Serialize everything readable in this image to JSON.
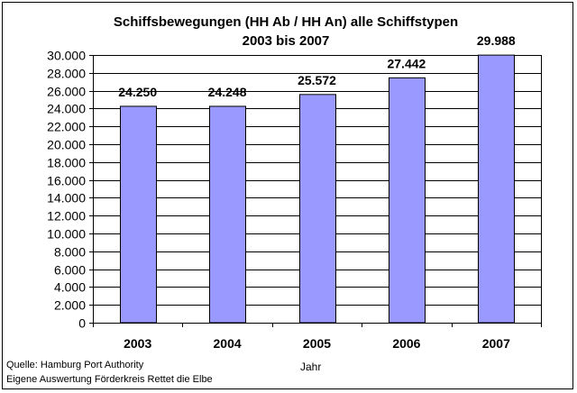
{
  "chart_data": {
    "type": "bar",
    "title_lines": [
      "Schiffsbewegungen (HH Ab / HH An) alle Schiffstypen",
      "2003 bis 2007"
    ],
    "categories": [
      "2003",
      "2004",
      "2005",
      "2006",
      "2007"
    ],
    "values": [
      24250,
      24248,
      25572,
      27442,
      29988
    ],
    "data_labels": [
      "24.250",
      "24.248",
      "25.572",
      "27.442",
      "29.988"
    ],
    "xlabel": "Jahr",
    "ylabel": "",
    "ylim": [
      0,
      30000
    ],
    "yticks": [
      0,
      2000,
      4000,
      6000,
      8000,
      10000,
      12000,
      14000,
      16000,
      18000,
      20000,
      22000,
      24000,
      26000,
      28000,
      30000
    ],
    "ytick_labels": [
      "0",
      "2.000",
      "4.000",
      "6.000",
      "8.000",
      "10.000",
      "12.000",
      "14.000",
      "16.000",
      "18.000",
      "20.000",
      "22.000",
      "24.000",
      "26.000",
      "28.000",
      "30.000"
    ],
    "grid": "horizontal",
    "legend": "none",
    "bar_color": "#9999ff",
    "bar_edge_color": "#000000"
  },
  "source": {
    "line1": "Quelle: Hamburg Port Authority",
    "line2": "Eigene Auswertung Förderkreis Rettet die Elbe"
  }
}
